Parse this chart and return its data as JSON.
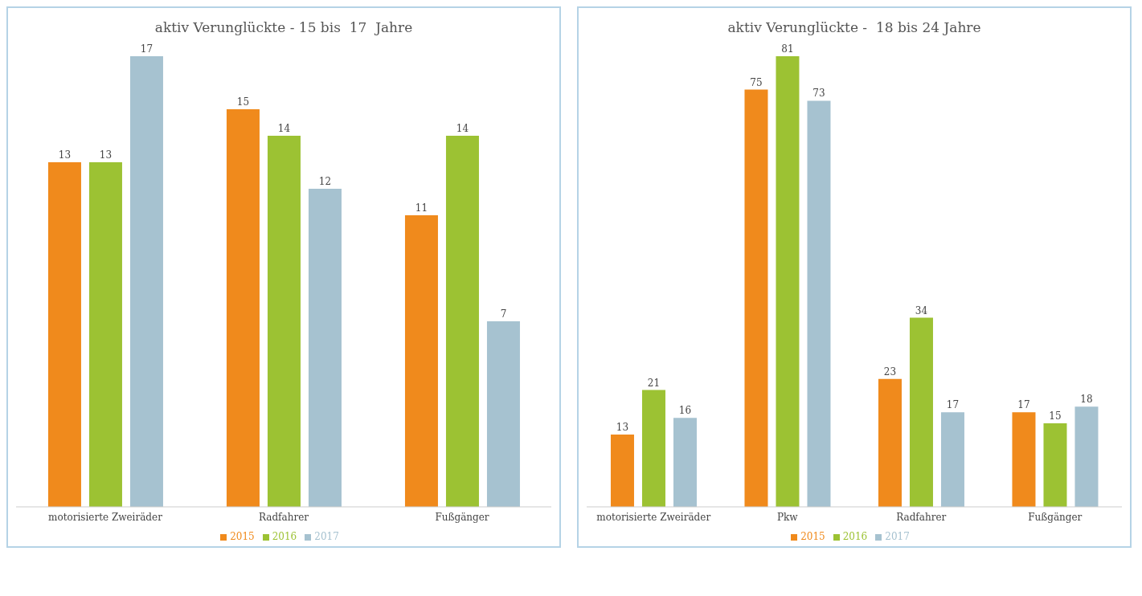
{
  "chart_data": [
    {
      "type": "bar",
      "title": "aktiv Verunglückte - 15 bis  17  Jahre",
      "categories": [
        "motorisierte Zweiräder",
        "Radfahrer",
        "Fußgänger"
      ],
      "series": [
        {
          "name": "2015",
          "color": "#f08a1c",
          "values": [
            13,
            15,
            11
          ]
        },
        {
          "name": "2016",
          "color": "#9cc233",
          "values": [
            13,
            14,
            14
          ]
        },
        {
          "name": "2017",
          "color": "#a6c2d0",
          "values": [
            17,
            12,
            7
          ]
        }
      ],
      "tick_labels": "x",
      "data_labels": true,
      "legend": "bottom",
      "grid": false
    },
    {
      "type": "bar",
      "title": "aktiv Verunglückte -  18 bis 24 Jahre",
      "categories": [
        "motorisierte Zweiräder",
        "Pkw",
        "Radfahrer",
        "Fußgänger"
      ],
      "series": [
        {
          "name": "2015",
          "color": "#f08a1c",
          "values": [
            13,
            75,
            23,
            17
          ]
        },
        {
          "name": "2016",
          "color": "#9cc233",
          "values": [
            21,
            81,
            34,
            15
          ]
        },
        {
          "name": "2017",
          "color": "#a6c2d0",
          "values": [
            16,
            73,
            17,
            18
          ]
        }
      ],
      "tick_labels": "x",
      "data_labels": true,
      "legend": "bottom",
      "grid": false
    }
  ]
}
